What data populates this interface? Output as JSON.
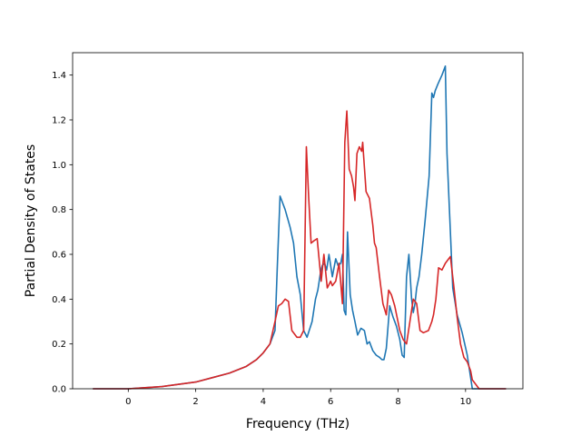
{
  "chart_data": {
    "type": "line",
    "title": "",
    "xlabel": "Frequency (THz)",
    "ylabel": "Partial Density of States",
    "xlim": [
      -1.65,
      11.7
    ],
    "ylim": [
      0.0,
      1.5
    ],
    "xticks": [
      0,
      2,
      4,
      6,
      8,
      10
    ],
    "yticks": [
      0.0,
      0.2,
      0.4,
      0.6,
      0.8,
      1.0,
      1.2,
      1.4
    ],
    "grid": false,
    "legend": "none",
    "series": [
      {
        "color": "#1f77b4",
        "x": [
          -1.05,
          0.0,
          0.5,
          1.0,
          1.5,
          2.0,
          2.5,
          3.0,
          3.5,
          3.8,
          4.0,
          4.2,
          4.35,
          4.42,
          4.5,
          4.65,
          4.8,
          4.9,
          5.0,
          5.1,
          5.2,
          5.3,
          5.45,
          5.55,
          5.62,
          5.7,
          5.75,
          5.82,
          5.88,
          5.95,
          6.05,
          6.15,
          6.22,
          6.3,
          6.35,
          6.4,
          6.45,
          6.5,
          6.58,
          6.65,
          6.72,
          6.8,
          6.9,
          7.0,
          7.08,
          7.15,
          7.25,
          7.35,
          7.45,
          7.52,
          7.58,
          7.65,
          7.75,
          7.85,
          7.95,
          8.05,
          8.12,
          8.18,
          8.25,
          8.32,
          8.4,
          8.45,
          8.5,
          8.55,
          8.62,
          8.7,
          8.8,
          8.92,
          9.0,
          9.05,
          9.1,
          9.18,
          9.3,
          9.4,
          9.45,
          9.55,
          9.62,
          9.75,
          9.9,
          10.05,
          10.15,
          10.2,
          10.4,
          11.2
        ],
        "y": [
          0.0,
          0.0,
          0.005,
          0.01,
          0.02,
          0.03,
          0.05,
          0.07,
          0.1,
          0.13,
          0.16,
          0.2,
          0.26,
          0.55,
          0.86,
          0.8,
          0.72,
          0.65,
          0.5,
          0.42,
          0.26,
          0.23,
          0.3,
          0.4,
          0.44,
          0.52,
          0.55,
          0.56,
          0.53,
          0.6,
          0.5,
          0.58,
          0.55,
          0.56,
          0.6,
          0.35,
          0.33,
          0.7,
          0.42,
          0.35,
          0.3,
          0.24,
          0.27,
          0.26,
          0.2,
          0.21,
          0.17,
          0.15,
          0.14,
          0.13,
          0.13,
          0.18,
          0.37,
          0.32,
          0.28,
          0.22,
          0.15,
          0.14,
          0.5,
          0.6,
          0.4,
          0.34,
          0.38,
          0.45,
          0.5,
          0.6,
          0.75,
          0.95,
          1.32,
          1.3,
          1.33,
          1.36,
          1.4,
          1.44,
          1.05,
          0.7,
          0.45,
          0.33,
          0.25,
          0.15,
          0.05,
          0.0,
          0.0,
          0.0
        ]
      },
      {
        "color": "#d62728",
        "x": [
          -1.05,
          0.0,
          0.5,
          1.0,
          1.5,
          2.0,
          2.5,
          3.0,
          3.5,
          3.8,
          4.0,
          4.2,
          4.35,
          4.45,
          4.55,
          4.65,
          4.75,
          4.85,
          5.0,
          5.1,
          5.2,
          5.28,
          5.35,
          5.42,
          5.5,
          5.6,
          5.72,
          5.8,
          5.9,
          6.0,
          6.05,
          6.15,
          6.25,
          6.35,
          6.42,
          6.48,
          6.55,
          6.62,
          6.68,
          6.72,
          6.78,
          6.85,
          6.92,
          6.95,
          7.05,
          7.15,
          7.25,
          7.3,
          7.35,
          7.45,
          7.55,
          7.65,
          7.72,
          7.8,
          7.9,
          8.05,
          8.15,
          8.25,
          8.35,
          8.45,
          8.55,
          8.65,
          8.75,
          8.9,
          9.0,
          9.05,
          9.12,
          9.2,
          9.3,
          9.4,
          9.45,
          9.55,
          9.65,
          9.75,
          9.85,
          9.95,
          10.05,
          10.15,
          10.2,
          10.4,
          11.2
        ],
        "y": [
          0.0,
          0.0,
          0.005,
          0.01,
          0.02,
          0.03,
          0.05,
          0.07,
          0.1,
          0.13,
          0.16,
          0.2,
          0.3,
          0.37,
          0.38,
          0.4,
          0.39,
          0.26,
          0.23,
          0.23,
          0.26,
          1.08,
          0.85,
          0.65,
          0.66,
          0.67,
          0.48,
          0.6,
          0.45,
          0.48,
          0.46,
          0.48,
          0.56,
          0.38,
          1.1,
          1.24,
          0.98,
          0.95,
          0.9,
          0.84,
          1.05,
          1.08,
          1.06,
          1.1,
          0.88,
          0.85,
          0.73,
          0.65,
          0.63,
          0.5,
          0.38,
          0.33,
          0.44,
          0.42,
          0.37,
          0.26,
          0.22,
          0.2,
          0.3,
          0.4,
          0.38,
          0.26,
          0.25,
          0.26,
          0.3,
          0.33,
          0.4,
          0.54,
          0.53,
          0.56,
          0.57,
          0.59,
          0.46,
          0.32,
          0.2,
          0.14,
          0.12,
          0.08,
          0.04,
          0.0,
          0.0
        ]
      }
    ]
  }
}
